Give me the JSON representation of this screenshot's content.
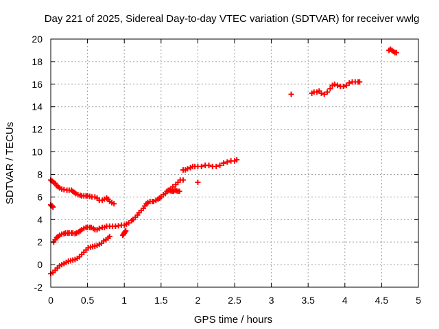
{
  "chart_data": {
    "type": "scatter",
    "title": "Day 221 of 2025, Sidereal Day-to-day VTEC variation (SDTVAR) for receiver wwlg",
    "xlabel": "GPS time / hours",
    "ylabel": "SDTVAR / TECUs",
    "xlim": [
      0,
      5
    ],
    "ylim": [
      -2,
      20
    ],
    "x_ticks": [
      "0",
      "0.5",
      "1",
      "1.5",
      "2",
      "2.5",
      "3",
      "3.5",
      "4",
      "4.5",
      "5"
    ],
    "y_ticks": [
      "-2",
      "0",
      "2",
      "4",
      "6",
      "8",
      "10",
      "12",
      "14",
      "16",
      "18",
      "20"
    ],
    "grid": true,
    "marker": "plus",
    "color": "#ff0000",
    "series": [
      {
        "x": [
          0.0,
          0.02,
          0.04,
          0.06,
          0.08,
          0.1,
          0.12,
          0.15,
          0.18,
          0.22,
          0.25,
          0.28,
          0.3,
          0.32,
          0.34,
          0.37,
          0.4,
          0.42,
          0.45,
          0.48,
          0.5,
          0.53,
          0.56,
          0.6,
          0.63,
          0.66,
          0.7,
          0.73,
          0.76,
          0.78,
          0.8,
          0.83,
          0.86
        ],
        "y": [
          7.5,
          7.4,
          7.3,
          7.2,
          7.0,
          6.9,
          6.8,
          6.7,
          6.65,
          6.6,
          6.6,
          6.6,
          6.5,
          6.4,
          6.3,
          6.2,
          6.15,
          6.1,
          6.1,
          6.1,
          6.1,
          6.05,
          6.0,
          6.0,
          5.9,
          5.7,
          5.7,
          5.8,
          5.9,
          5.8,
          5.6,
          5.5,
          5.4
        ]
      },
      {
        "x": [
          0.0,
          0.01,
          0.02,
          0.03
        ],
        "y": [
          5.3,
          5.2,
          5.2,
          5.1
        ]
      },
      {
        "x": [
          0.04,
          0.06,
          0.08,
          0.1,
          0.12,
          0.15,
          0.18,
          0.2,
          0.23,
          0.25,
          0.28,
          0.3,
          0.33,
          0.35,
          0.38,
          0.4,
          0.42,
          0.45,
          0.48,
          0.5,
          0.53,
          0.55,
          0.58,
          0.6,
          0.63,
          0.66,
          0.7,
          0.73,
          0.76,
          0.8,
          0.84,
          0.88,
          0.92,
          0.96,
          1.0,
          1.03,
          1.06,
          1.1,
          1.12,
          1.15,
          1.18,
          1.2,
          1.23,
          1.26,
          1.28,
          1.3,
          1.32,
          1.35,
          1.38,
          1.4,
          1.43,
          1.46,
          1.48,
          1.5,
          1.53,
          1.56,
          1.58,
          1.6,
          1.63,
          1.66,
          1.7,
          1.73,
          1.76,
          1.8
        ],
        "y": [
          2.0,
          2.2,
          2.4,
          2.5,
          2.6,
          2.7,
          2.75,
          2.8,
          2.8,
          2.8,
          2.8,
          2.8,
          2.75,
          2.8,
          2.9,
          3.0,
          3.1,
          3.2,
          3.3,
          3.3,
          3.3,
          3.3,
          3.2,
          3.1,
          3.1,
          3.2,
          3.3,
          3.3,
          3.4,
          3.4,
          3.4,
          3.4,
          3.45,
          3.5,
          3.5,
          3.6,
          3.7,
          3.9,
          4.0,
          4.2,
          4.4,
          4.6,
          4.8,
          5.0,
          5.2,
          5.4,
          5.5,
          5.6,
          5.6,
          5.6,
          5.7,
          5.8,
          5.9,
          6.0,
          6.2,
          6.3,
          6.5,
          6.6,
          6.7,
          6.9,
          7.1,
          7.3,
          7.5,
          7.5
        ]
      },
      {
        "x": [
          0.0,
          0.03,
          0.06,
          0.09,
          0.12,
          0.15,
          0.18,
          0.21,
          0.24,
          0.27,
          0.3,
          0.33,
          0.36,
          0.39,
          0.42,
          0.45,
          0.48,
          0.51,
          0.54,
          0.57,
          0.6,
          0.63,
          0.66,
          0.69,
          0.72,
          0.75,
          0.78,
          0.8
        ],
        "y": [
          -0.8,
          -0.7,
          -0.5,
          -0.3,
          -0.1,
          0.0,
          0.1,
          0.2,
          0.3,
          0.35,
          0.4,
          0.45,
          0.55,
          0.7,
          0.9,
          1.1,
          1.3,
          1.5,
          1.55,
          1.6,
          1.65,
          1.7,
          1.8,
          1.9,
          2.1,
          2.2,
          2.35,
          2.5
        ]
      },
      {
        "x": [
          0.98,
          0.99,
          1.0,
          1.01,
          1.02
        ],
        "y": [
          2.6,
          2.7,
          2.8,
          2.9,
          3.0
        ]
      },
      {
        "x": [
          1.61,
          1.63,
          1.65,
          1.67,
          1.69,
          1.71,
          1.73,
          1.75
        ],
        "y": [
          6.6,
          6.55,
          6.5,
          6.5,
          6.6,
          6.55,
          6.5,
          6.5
        ]
      },
      {
        "x": [
          1.8,
          1.83,
          1.86,
          1.9,
          1.93,
          1.96,
          2.0,
          2.05,
          2.1,
          2.15,
          2.2,
          2.25,
          2.3,
          2.35,
          2.4,
          2.45,
          2.5,
          2.53
        ],
        "y": [
          8.4,
          8.4,
          8.5,
          8.6,
          8.7,
          8.7,
          8.7,
          8.7,
          8.8,
          8.8,
          8.7,
          8.7,
          8.8,
          9.0,
          9.1,
          9.2,
          9.2,
          9.3
        ]
      },
      {
        "x": [
          2.0
        ],
        "y": [
          7.3
        ]
      },
      {
        "x": [
          3.27
        ],
        "y": [
          15.1
        ]
      },
      {
        "x": [
          3.55,
          3.58,
          3.62,
          3.65,
          3.68,
          3.72,
          3.76,
          3.8,
          3.83,
          3.86,
          3.9,
          3.94,
          3.98,
          4.02,
          4.06,
          4.1,
          4.14,
          4.18,
          4.2
        ],
        "y": [
          15.2,
          15.3,
          15.3,
          15.4,
          15.2,
          15.1,
          15.3,
          15.6,
          15.9,
          16.0,
          15.9,
          15.8,
          15.8,
          15.9,
          16.1,
          16.2,
          16.2,
          16.2,
          16.2
        ]
      },
      {
        "x": [
          4.6,
          4.62,
          4.64,
          4.66,
          4.68,
          4.7
        ],
        "y": [
          19.0,
          19.1,
          19.0,
          18.9,
          18.8,
          18.8
        ]
      }
    ]
  }
}
